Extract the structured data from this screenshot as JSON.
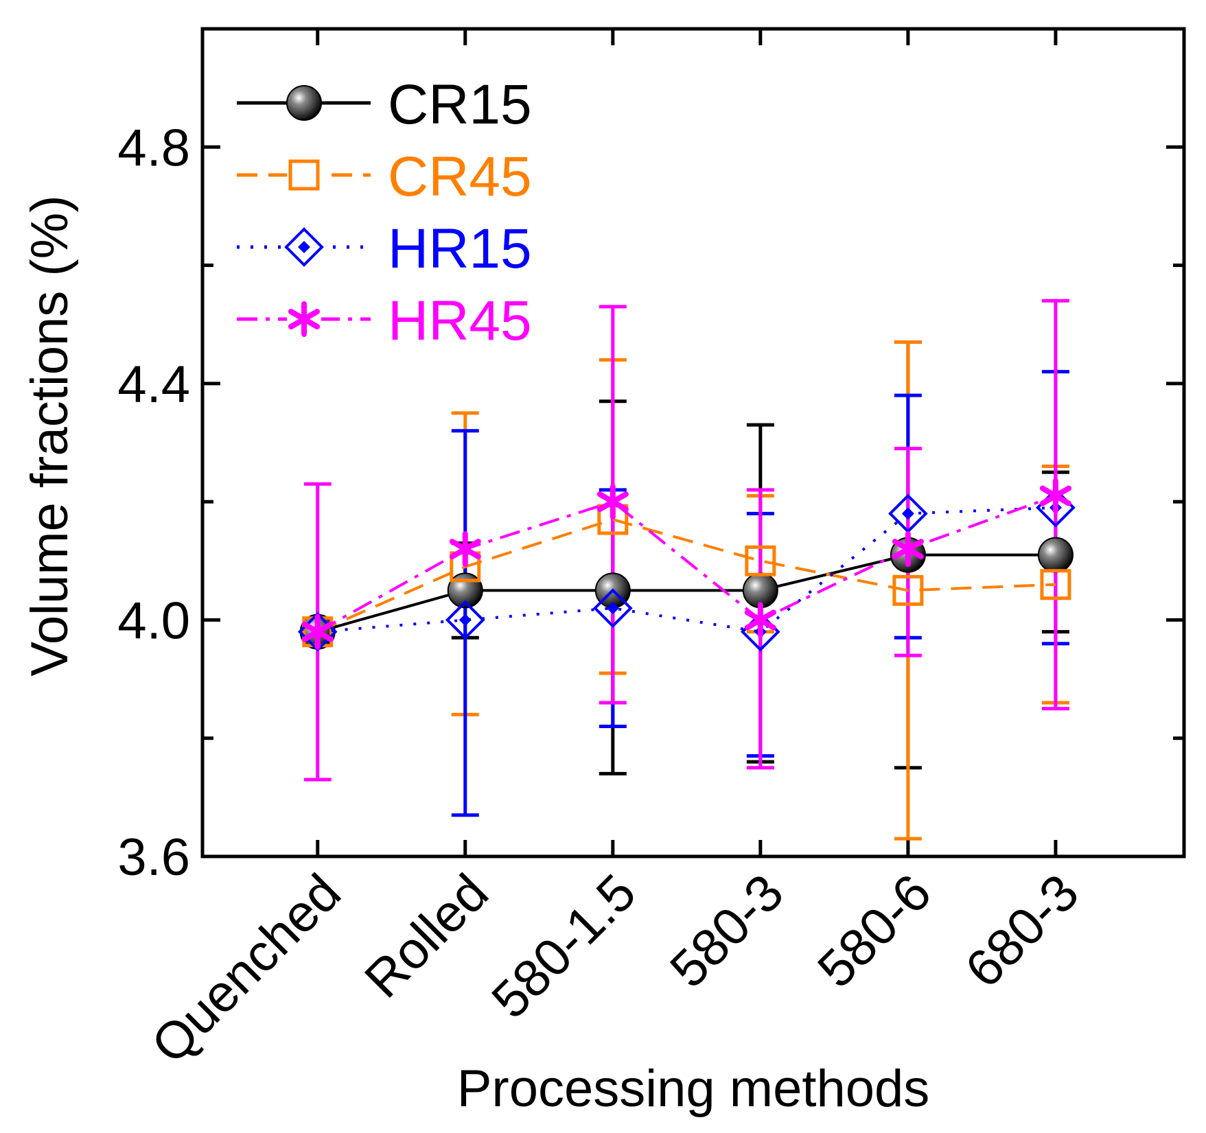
{
  "chart_data": {
    "type": "line",
    "xlabel": "Processing methods",
    "ylabel": "Volume fractions (%)",
    "categories": [
      "Quenched",
      "Rolled",
      "580-1.5",
      "580-3",
      "580-6",
      "680-3"
    ],
    "ylim": [
      3.6,
      5.0
    ],
    "y_ticks": [
      "3.6",
      "4.0",
      "4.4",
      "4.8"
    ],
    "grid": false,
    "legend_position": "top-left",
    "series": [
      {
        "name": "CR15",
        "color": "#000000",
        "line_style": "solid",
        "marker": "filled-circle",
        "values": [
          3.98,
          4.05,
          4.05,
          4.05,
          4.11,
          4.11
        ],
        "err_low": [
          3.98,
          3.97,
          3.74,
          3.76,
          3.75,
          3.98
        ],
        "err_high": [
          3.98,
          4.13,
          4.37,
          4.33,
          4.47,
          4.25
        ]
      },
      {
        "name": "CR45",
        "color": "#FF8000",
        "line_style": "dashed",
        "marker": "open-square",
        "values": [
          3.98,
          4.09,
          4.17,
          4.1,
          4.05,
          4.06
        ],
        "err_low": [
          3.98,
          3.84,
          3.91,
          3.98,
          3.63,
          3.86
        ],
        "err_high": [
          3.98,
          4.35,
          4.44,
          4.21,
          4.47,
          4.26
        ]
      },
      {
        "name": "HR15",
        "color": "#0000FF",
        "line_style": "dotted",
        "marker": "open-diamond",
        "values": [
          3.98,
          4.0,
          4.02,
          3.98,
          4.18,
          4.19
        ],
        "err_low": [
          3.98,
          3.67,
          3.82,
          3.77,
          3.97,
          3.96
        ],
        "err_high": [
          3.98,
          4.32,
          4.22,
          4.18,
          4.38,
          4.42
        ]
      },
      {
        "name": "HR45",
        "color": "#FF00FF",
        "line_style": "dash-dot",
        "marker": "asterisk",
        "values": [
          3.98,
          4.12,
          4.2,
          4.0,
          4.12,
          4.21
        ],
        "err_low": [
          3.73,
          4.12,
          3.86,
          3.75,
          3.94,
          3.85
        ],
        "err_high": [
          4.23,
          4.12,
          4.53,
          4.22,
          4.29,
          4.54
        ]
      }
    ]
  }
}
